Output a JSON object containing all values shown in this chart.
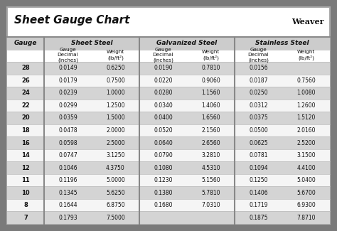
{
  "title": "Sheet Gauge Chart",
  "bg_outer": "#7a7a7a",
  "bg_white": "#ffffff",
  "bg_title": "#ffffff",
  "bg_header": "#cccccc",
  "bg_subheader": "#ffffff",
  "row_bg_odd": "#d4d4d4",
  "row_bg_even": "#f5f5f5",
  "text_dark": "#111111",
  "gauges": [
    28,
    26,
    24,
    22,
    20,
    18,
    16,
    14,
    12,
    11,
    10,
    8,
    7
  ],
  "sheet_steel": [
    [
      "0.0149",
      "0.6250"
    ],
    [
      "0.0179",
      "0.7500"
    ],
    [
      "0.0239",
      "1.0000"
    ],
    [
      "0.0299",
      "1.2500"
    ],
    [
      "0.0359",
      "1.5000"
    ],
    [
      "0.0478",
      "2.0000"
    ],
    [
      "0.0598",
      "2.5000"
    ],
    [
      "0.0747",
      "3.1250"
    ],
    [
      "0.1046",
      "4.3750"
    ],
    [
      "0.1196",
      "5.0000"
    ],
    [
      "0.1345",
      "5.6250"
    ],
    [
      "0.1644",
      "6.8750"
    ],
    [
      "0.1793",
      "7.5000"
    ]
  ],
  "galvanized_steel": [
    [
      "0.0190",
      "0.7810"
    ],
    [
      "0.0220",
      "0.9060"
    ],
    [
      "0.0280",
      "1.1560"
    ],
    [
      "0.0340",
      "1.4060"
    ],
    [
      "0.0400",
      "1.6560"
    ],
    [
      "0.0520",
      "2.1560"
    ],
    [
      "0.0640",
      "2.6560"
    ],
    [
      "0.0790",
      "3.2810"
    ],
    [
      "0.1080",
      "4.5310"
    ],
    [
      "0.1230",
      "5.1560"
    ],
    [
      "0.1380",
      "5.7810"
    ],
    [
      "0.1680",
      "7.0310"
    ],
    [
      "",
      ""
    ]
  ],
  "stainless_steel": [
    [
      "0.0156",
      ""
    ],
    [
      "0.0187",
      "0.7560"
    ],
    [
      "0.0250",
      "1.0080"
    ],
    [
      "0.0312",
      "1.2600"
    ],
    [
      "0.0375",
      "1.5120"
    ],
    [
      "0.0500",
      "2.0160"
    ],
    [
      "0.0625",
      "2.5200"
    ],
    [
      "0.0781",
      "3.1500"
    ],
    [
      "0.1094",
      "4.4100"
    ],
    [
      "0.1250",
      "5.0400"
    ],
    [
      "0.1406",
      "5.6700"
    ],
    [
      "0.1719",
      "6.9300"
    ],
    [
      "0.1875",
      "7.8710"
    ]
  ],
  "title_fontsize": 11,
  "header_fontsize": 6.5,
  "subheader_fontsize": 5.2,
  "data_fontsize": 5.5,
  "gauge_label_fontsize": 6.0
}
